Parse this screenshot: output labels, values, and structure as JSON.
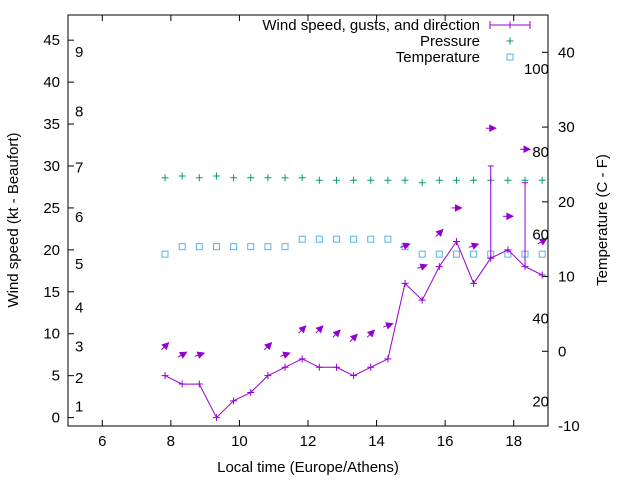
{
  "chart_data": {
    "type": "line",
    "title": "",
    "xlabel": "Local time (Europe/Athens)",
    "ylabel": "Wind speed (kt - Beaufort)",
    "y2label": "Temperature (C - F)",
    "xlim": [
      5,
      19
    ],
    "ylim": [
      -1,
      48
    ],
    "y2lim": [
      -10,
      45
    ],
    "x_ticks": [
      6,
      8,
      10,
      12,
      14,
      16,
      18
    ],
    "y_ticks": [
      0,
      5,
      10,
      15,
      20,
      25,
      30,
      35,
      40,
      45
    ],
    "y2_ticks": [
      -10,
      0,
      10,
      20,
      30,
      40
    ],
    "beaufort_labels": [
      {
        "label": "1",
        "kt": 1.3
      },
      {
        "label": "2",
        "kt": 4.7
      },
      {
        "label": "3",
        "kt": 8.5
      },
      {
        "label": "4",
        "kt": 13.1
      },
      {
        "label": "5",
        "kt": 18.3
      },
      {
        "label": "6",
        "kt": 23.9
      },
      {
        "label": "7",
        "kt": 29.8
      },
      {
        "label": "8",
        "kt": 36.5
      },
      {
        "label": "9",
        "kt": 43.6
      }
    ],
    "fahrenheit_labels": [
      {
        "label": "20",
        "c": -6.7
      },
      {
        "label": "40",
        "c": 4.4
      },
      {
        "label": "60",
        "c": 15.6
      },
      {
        "label": "80",
        "c": 26.7
      },
      {
        "label": "100",
        "c": 37.8
      }
    ],
    "legend": {
      "placement": "top-right",
      "entries": [
        "Wind speed, gusts, and direction",
        "Pressure",
        "Temperature"
      ]
    },
    "colors": {
      "wind": "#9400d3",
      "pressure": "#009e73",
      "temperature": "#56b4e9",
      "axis": "#000000"
    },
    "wind": {
      "x": [
        7.83,
        8.33,
        8.83,
        9.33,
        9.83,
        10.33,
        10.83,
        11.33,
        11.83,
        12.33,
        12.83,
        13.33,
        13.83,
        14.33,
        14.83,
        15.33,
        15.83,
        16.33,
        16.83,
        17.33,
        17.83,
        18.33,
        18.83
      ],
      "speed": [
        5,
        4,
        4,
        0,
        2,
        3,
        5,
        6,
        7,
        6,
        6,
        5,
        6,
        7,
        16,
        14,
        18,
        21,
        16,
        19,
        20,
        18,
        17
      ],
      "gust_tops": [
        {
          "x": 17.33,
          "value": 30
        },
        {
          "x": 18.33,
          "value": 28
        }
      ]
    },
    "wind_direction_arrows": [
      {
        "x": 7.83,
        "kt": 8.5,
        "angle": 225
      },
      {
        "x": 8.33,
        "kt": 7.5,
        "angle": 210
      },
      {
        "x": 8.83,
        "kt": 7.5,
        "angle": 200
      },
      {
        "x": 10.83,
        "kt": 8.5,
        "angle": 225
      },
      {
        "x": 11.33,
        "kt": 7.5,
        "angle": 200
      },
      {
        "x": 11.83,
        "kt": 10.5,
        "angle": 225
      },
      {
        "x": 12.33,
        "kt": 10.5,
        "angle": 225
      },
      {
        "x": 12.83,
        "kt": 10,
        "angle": 225
      },
      {
        "x": 13.33,
        "kt": 9.5,
        "angle": 225
      },
      {
        "x": 13.83,
        "kt": 10,
        "angle": 225
      },
      {
        "x": 14.33,
        "kt": 11,
        "angle": 200
      },
      {
        "x": 14.83,
        "kt": 20.5,
        "angle": 200
      },
      {
        "x": 15.33,
        "kt": 18,
        "angle": 200
      },
      {
        "x": 15.83,
        "kt": 22,
        "angle": 225
      },
      {
        "x": 16.33,
        "kt": 25,
        "angle": 180
      },
      {
        "x": 16.83,
        "kt": 20.5,
        "angle": 200
      },
      {
        "x": 17.33,
        "kt": 34.5,
        "angle": 180
      },
      {
        "x": 17.83,
        "kt": 24,
        "angle": 180
      },
      {
        "x": 18.33,
        "kt": 32,
        "angle": 180
      },
      {
        "x": 18.83,
        "kt": 21,
        "angle": 210
      }
    ],
    "pressure": {
      "x": [
        7.83,
        8.33,
        8.83,
        9.33,
        9.83,
        10.33,
        10.83,
        11.33,
        11.83,
        12.33,
        12.83,
        13.33,
        13.83,
        14.33,
        14.83,
        15.33,
        15.83,
        16.33,
        16.83,
        17.33,
        17.83,
        18.33,
        18.83
      ],
      "plotted_kt": [
        28.6,
        28.8,
        28.6,
        28.8,
        28.6,
        28.6,
        28.6,
        28.6,
        28.6,
        28.3,
        28.3,
        28.3,
        28.3,
        28.3,
        28.3,
        28.0,
        28.3,
        28.3,
        28.3,
        28.3,
        28.3,
        28.3,
        28.3
      ]
    },
    "temperature": {
      "x": [
        7.83,
        8.33,
        8.83,
        9.33,
        9.83,
        10.33,
        10.83,
        11.33,
        11.83,
        12.33,
        12.83,
        13.33,
        13.83,
        14.33,
        14.83,
        15.33,
        15.83,
        16.33,
        16.83,
        17.33,
        17.83,
        18.33,
        18.83
      ],
      "celsius": [
        13,
        14,
        14,
        14,
        14,
        14,
        14,
        14,
        15,
        15,
        15,
        15,
        15,
        15,
        14,
        13,
        13,
        13,
        13,
        13,
        13,
        13,
        13
      ]
    }
  }
}
